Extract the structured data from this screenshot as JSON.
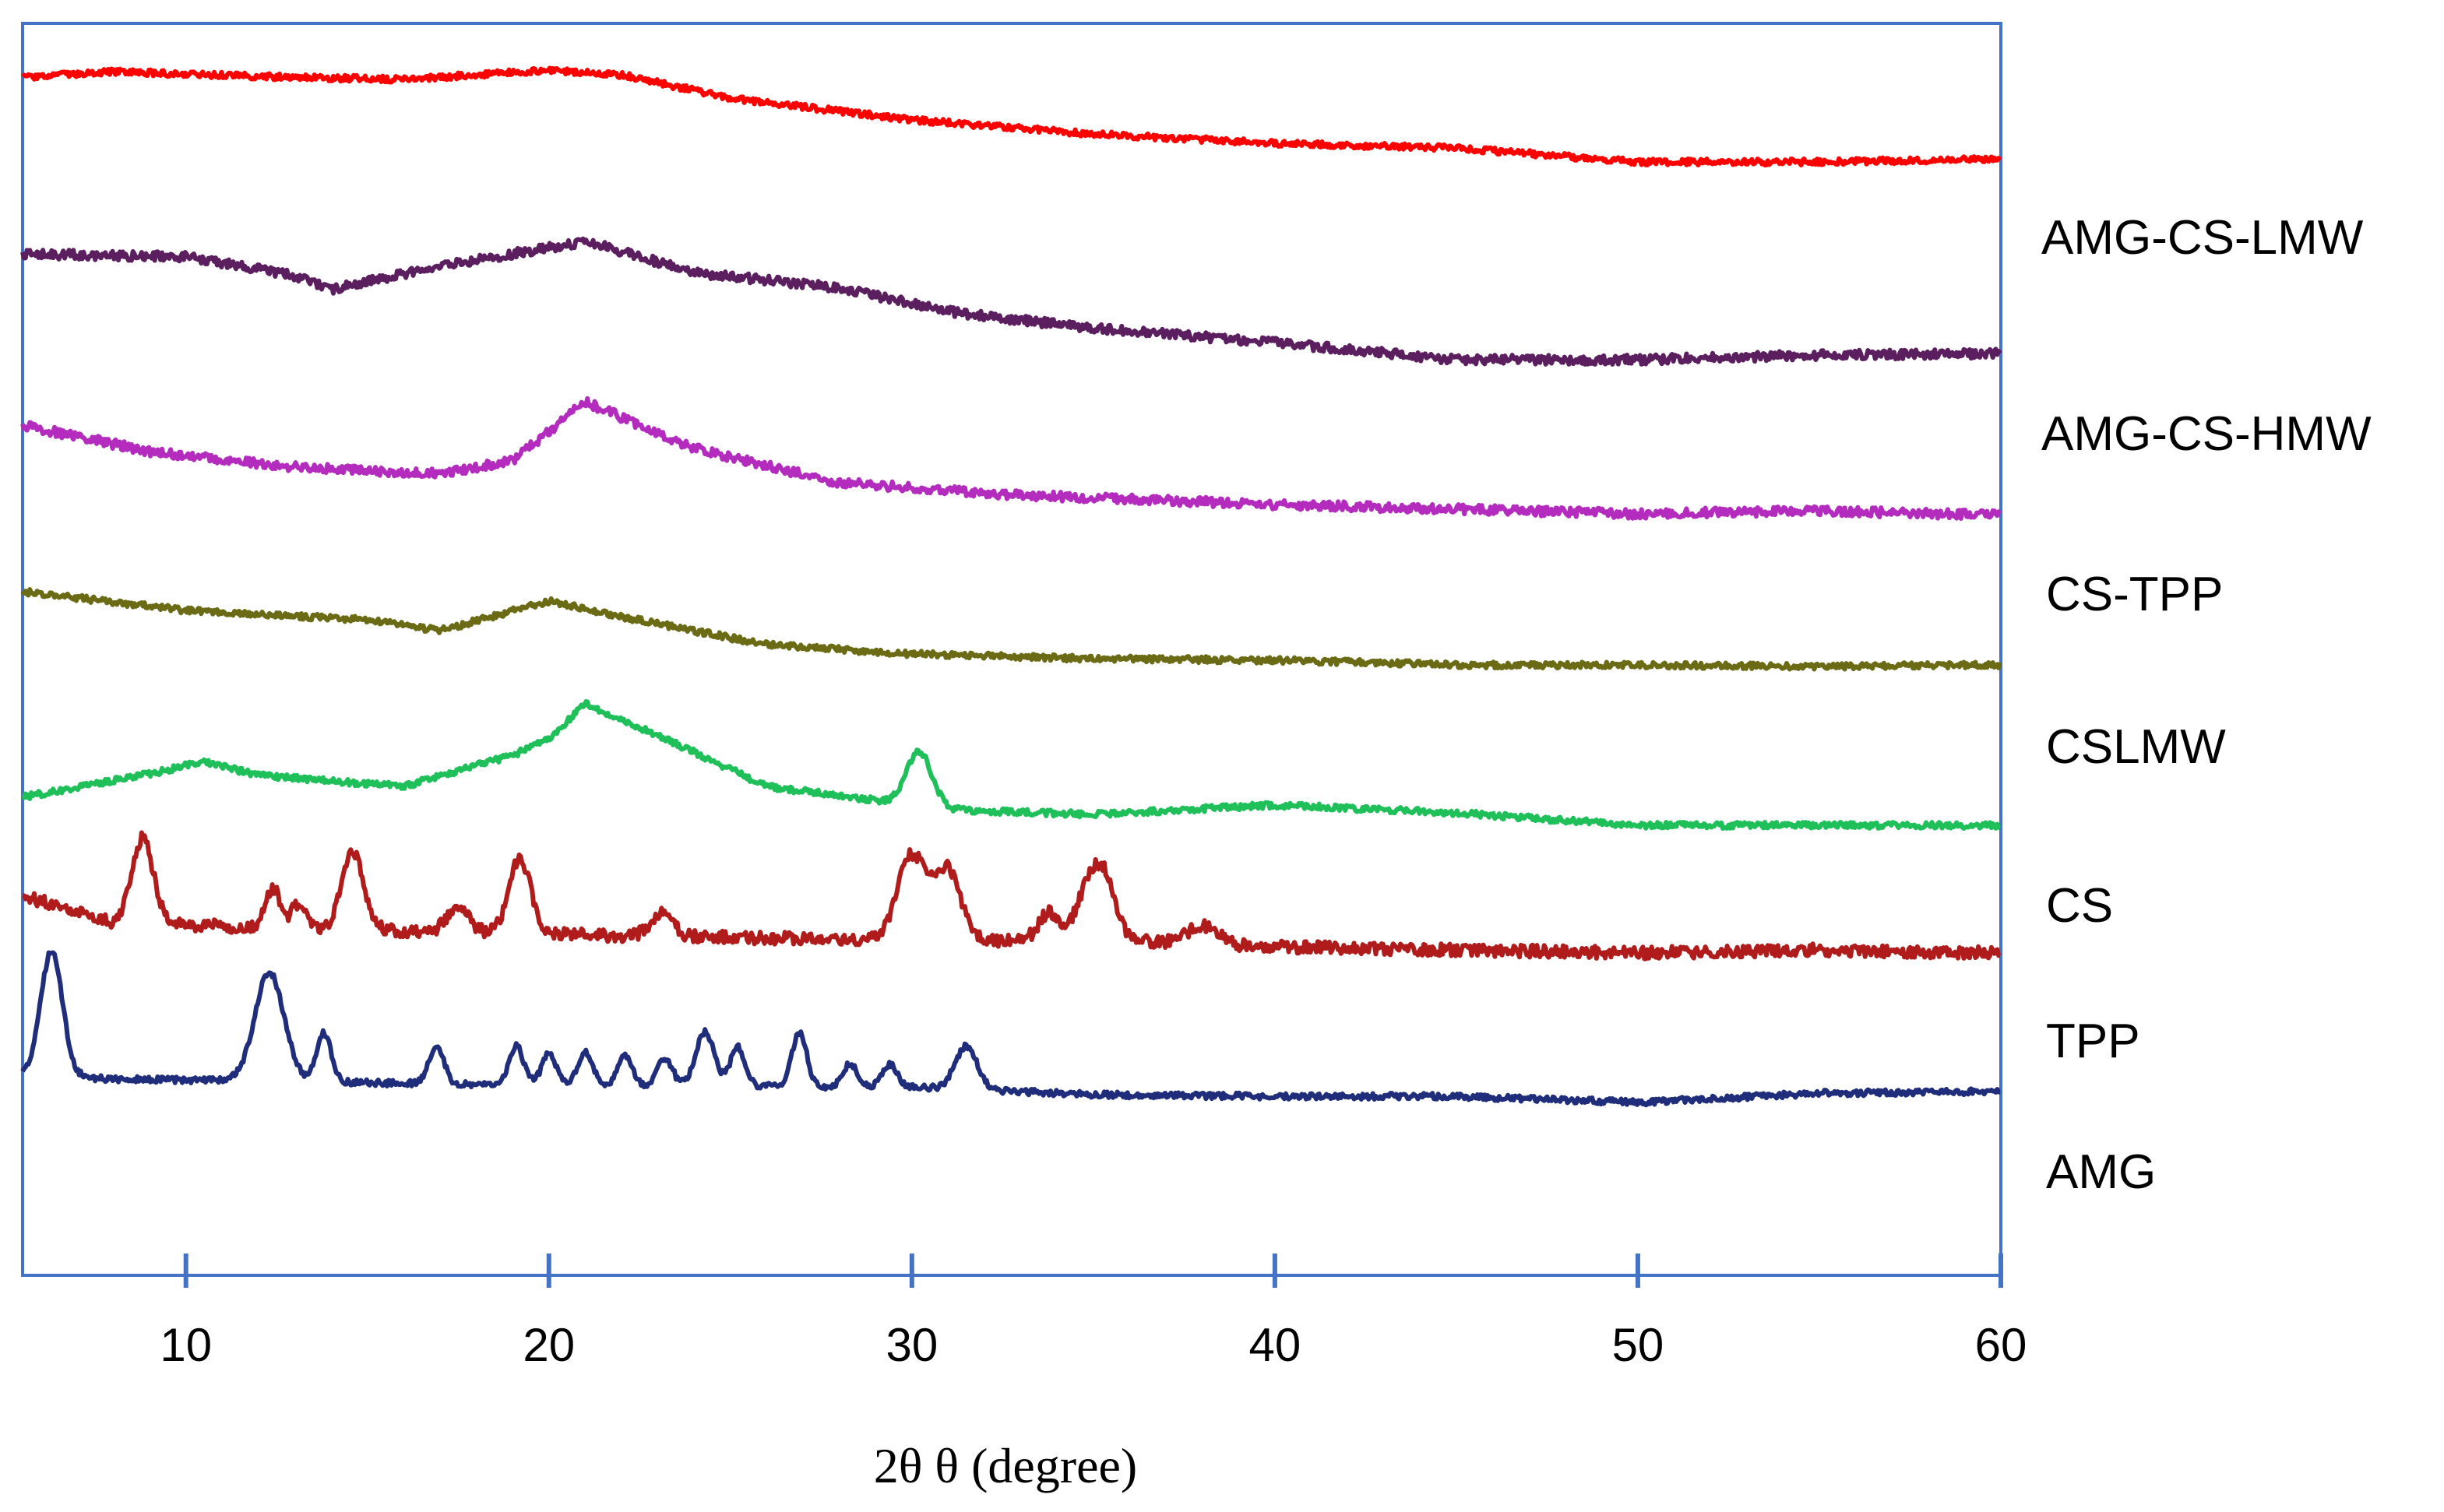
{
  "chart_data": {
    "type": "line",
    "title": "",
    "xlabel": "2θ θ (degree)",
    "ylabel": "",
    "xlim": [
      5.5,
      60
    ],
    "xticks": [
      10,
      20,
      30,
      40,
      50,
      60
    ],
    "tick_labels": [
      "10",
      "20",
      "30",
      "40",
      "50",
      "60"
    ],
    "grid": false,
    "legend": "right",
    "frame_color": "#4472c4",
    "series": [
      {
        "name": "AMG-CS-LMW",
        "color": "#ff0000",
        "noise": 2,
        "baseline": [
          [
            5.5,
            50
          ],
          [
            8,
            46
          ],
          [
            12,
            49
          ],
          [
            16,
            51
          ],
          [
            20,
            45
          ],
          [
            22,
            48
          ],
          [
            25,
            63
          ],
          [
            30,
            77
          ],
          [
            35,
            86
          ],
          [
            40,
            92
          ],
          [
            45,
            95
          ],
          [
            50,
            104
          ],
          [
            55,
            104
          ],
          [
            60,
            102
          ]
        ],
        "peaks": []
      },
      {
        "name": "AMG-CS-HMW",
        "color": "#5b1f5f",
        "noise": 3,
        "baseline": [
          [
            5.5,
            163
          ],
          [
            10,
            165
          ],
          [
            13,
            177
          ],
          [
            14,
            186
          ],
          [
            17,
            171
          ],
          [
            21,
            155
          ],
          [
            24,
            175
          ],
          [
            28,
            185
          ],
          [
            31,
            200
          ],
          [
            35,
            211
          ],
          [
            40,
            220
          ],
          [
            45,
            231
          ],
          [
            50,
            231
          ],
          [
            55,
            228
          ],
          [
            60,
            227
          ]
        ],
        "peaks": []
      },
      {
        "name": "CS-TPP",
        "color": "#b42cbe",
        "noise": 3,
        "baseline": [
          [
            5.5,
            273
          ],
          [
            9,
            290
          ],
          [
            13,
            300
          ],
          [
            17,
            304
          ],
          [
            19,
            296
          ],
          [
            21,
            258
          ],
          [
            24,
            288
          ],
          [
            28,
            310
          ],
          [
            33,
            318
          ],
          [
            40,
            324
          ],
          [
            45,
            327
          ],
          [
            50,
            330
          ],
          [
            55,
            328
          ],
          [
            60,
            331
          ]
        ],
        "peaks": []
      },
      {
        "name": "CSLMW",
        "color": "#6b6b16",
        "noise": 2,
        "baseline": [
          [
            5.5,
            380
          ],
          [
            10,
            392
          ],
          [
            15,
            398
          ],
          [
            17,
            405
          ],
          [
            20,
            386
          ],
          [
            22,
            396
          ],
          [
            26,
            414
          ],
          [
            30,
            420
          ],
          [
            35,
            423
          ],
          [
            40,
            424
          ],
          [
            45,
            427
          ],
          [
            50,
            427
          ],
          [
            55,
            428
          ],
          [
            60,
            427
          ]
        ],
        "peaks": []
      },
      {
        "name": "CS",
        "color": "#1fbf5a",
        "noise": 2,
        "baseline": [
          [
            5.5,
            512
          ],
          [
            9,
            497
          ],
          [
            10.5,
            489
          ],
          [
            12,
            498
          ],
          [
            16,
            505
          ],
          [
            19,
            485
          ],
          [
            20,
            475
          ],
          [
            21,
            452
          ],
          [
            23,
            472
          ],
          [
            26,
            505
          ],
          [
            29,
            514
          ],
          [
            31,
            520
          ],
          [
            35,
            523
          ],
          [
            40,
            517
          ],
          [
            45,
            522
          ],
          [
            50,
            530
          ],
          [
            55,
            530
          ],
          [
            60,
            530
          ]
        ],
        "peaks": [
          [
            30.2,
            35,
            0.35
          ]
        ]
      },
      {
        "name": "TPP",
        "color": "#b01c1c",
        "noise": 4,
        "baseline": [
          [
            5.5,
            575
          ],
          [
            8,
            593
          ],
          [
            20,
            600
          ],
          [
            30,
            604
          ],
          [
            36,
            604
          ],
          [
            40,
            608
          ],
          [
            45,
            610
          ],
          [
            50,
            612
          ],
          [
            55,
            610
          ],
          [
            60,
            612
          ]
        ],
        "peaks": [
          [
            8.8,
            55,
            0.3
          ],
          [
            12.4,
            25,
            0.2
          ],
          [
            13.1,
            15,
            0.2
          ],
          [
            14.6,
            50,
            0.3
          ],
          [
            17.5,
            15,
            0.3
          ],
          [
            19.2,
            48,
            0.3
          ],
          [
            23.1,
            15,
            0.3
          ],
          [
            30.0,
            55,
            0.4
          ],
          [
            31.0,
            45,
            0.35
          ],
          [
            33.8,
            18,
            0.3
          ],
          [
            34.8,
            28,
            0.3
          ],
          [
            35.3,
            40,
            0.3
          ],
          [
            38.0,
            12,
            0.4
          ]
        ]
      },
      {
        "name": "AMG",
        "color": "#1f2d7a",
        "noise": 2,
        "baseline": [
          [
            5.5,
            690
          ],
          [
            8,
            693
          ],
          [
            20,
            697
          ],
          [
            30,
            698
          ],
          [
            35,
            703
          ],
          [
            40,
            704
          ],
          [
            45,
            704
          ],
          [
            50,
            708
          ],
          [
            55,
            702
          ],
          [
            60,
            701
          ]
        ],
        "peaks": [
          [
            6.3,
            80,
            0.3
          ],
          [
            12.3,
            70,
            0.4
          ],
          [
            13.8,
            32,
            0.2
          ],
          [
            16.9,
            25,
            0.2
          ],
          [
            19.1,
            25,
            0.2
          ],
          [
            20.0,
            20,
            0.2
          ],
          [
            21.0,
            22,
            0.2
          ],
          [
            22.1,
            20,
            0.2
          ],
          [
            23.2,
            18,
            0.2
          ],
          [
            24.3,
            35,
            0.25
          ],
          [
            25.2,
            25,
            0.2
          ],
          [
            26.9,
            35,
            0.2
          ],
          [
            28.3,
            15,
            0.2
          ],
          [
            29.4,
            14,
            0.2
          ],
          [
            31.5,
            28,
            0.3
          ]
        ]
      }
    ]
  }
}
